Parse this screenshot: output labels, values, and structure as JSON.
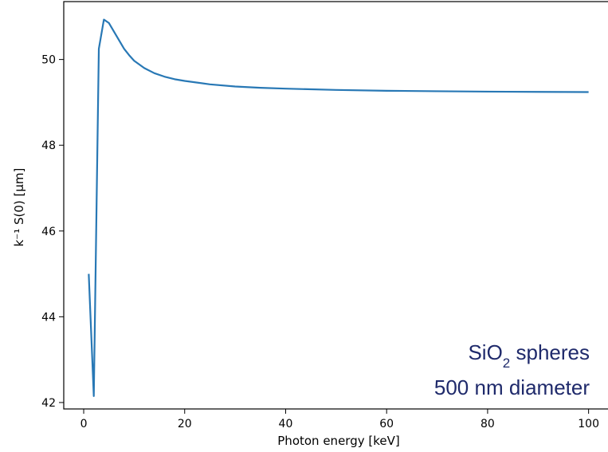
{
  "chart_data": {
    "type": "line",
    "title": "",
    "xlabel": "Photon energy [keV]",
    "ylabel": "k⁻¹ S(0) [μm]",
    "xlim": [
      -3.95,
      104.95
    ],
    "ylim": [
      41.85,
      51.35
    ],
    "xticks": [
      0,
      20,
      40,
      60,
      80,
      100
    ],
    "xtick_labels": [
      "0",
      "20",
      "40",
      "60",
      "80",
      "100"
    ],
    "yticks": [
      42,
      44,
      46,
      48,
      50
    ],
    "ytick_labels": [
      "42",
      "44",
      "46",
      "48",
      "50"
    ],
    "grid": false,
    "series": [
      {
        "color": "#2878b5",
        "x": [
          1.0,
          2.0,
          3.0,
          4.0,
          5.0,
          6.0,
          7.0,
          8.0,
          9.0,
          10.0,
          12.0,
          14.0,
          16.0,
          18.0,
          20.0,
          25.0,
          30.0,
          35.0,
          40.0,
          50.0,
          60.0,
          70.0,
          80.0,
          90.0,
          100.0
        ],
        "y": [
          45.0,
          42.15,
          50.25,
          50.93,
          50.85,
          50.65,
          50.45,
          50.25,
          50.1,
          49.97,
          49.8,
          49.68,
          49.6,
          49.54,
          49.5,
          49.42,
          49.37,
          49.34,
          49.32,
          49.29,
          49.27,
          49.26,
          49.25,
          49.245,
          49.24
        ]
      }
    ],
    "annotations": [
      {
        "parts": [
          {
            "text": "SiO",
            "sub": false
          },
          {
            "text": "2",
            "sub": true
          },
          {
            "text": " spheres",
            "sub": false
          }
        ],
        "color": "#1f2a6b"
      },
      {
        "parts": [
          {
            "text": "500 nm diameter",
            "sub": false
          }
        ],
        "color": "#1f2a6b"
      }
    ]
  }
}
